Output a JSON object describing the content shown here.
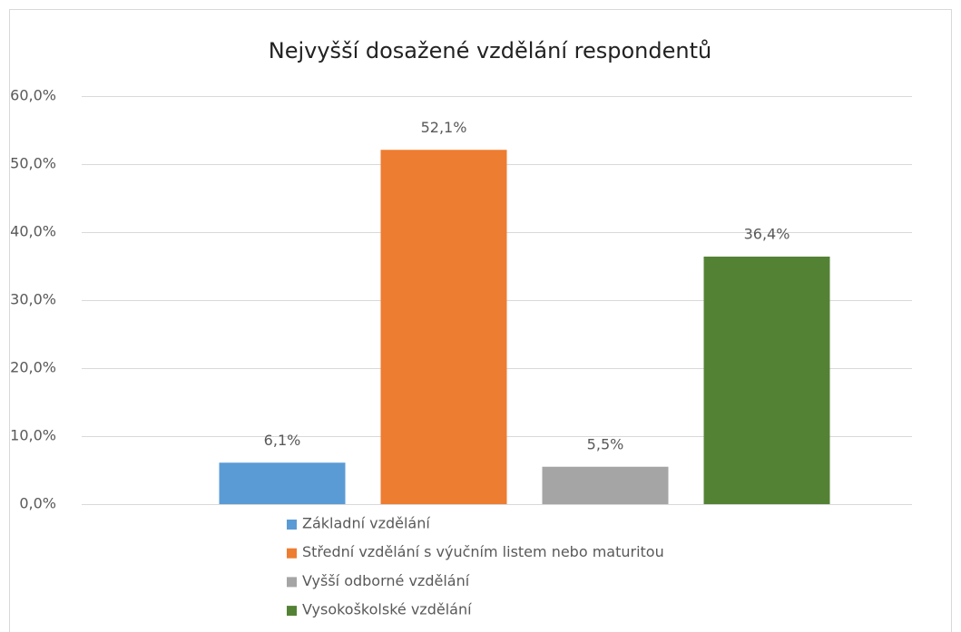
{
  "chart_data": {
    "type": "bar",
    "title": "Nejvyšší dosažené vzdělání respondentů",
    "categories": [
      null
    ],
    "series": [
      {
        "name": "Základní vzdělání",
        "color": "#5b9bd5",
        "values": [
          6.1
        ],
        "value_labels": [
          "6,1%"
        ]
      },
      {
        "name": "Střední vzdělání s výučním listem nebo maturitou",
        "color": "#ed7d31",
        "values": [
          52.1
        ],
        "value_labels": [
          "52,1%"
        ]
      },
      {
        "name": "Vyšší odborné vzdělání",
        "color": "#a5a5a5",
        "values": [
          5.5
        ],
        "value_labels": [
          "5,5%"
        ]
      },
      {
        "name": "Vysokoškolské vzdělání",
        "color": "#548235",
        "values": [
          36.4
        ],
        "value_labels": [
          "36,4%"
        ]
      }
    ],
    "ylim": [
      0,
      60
    ],
    "yticks": [
      {
        "value": 0,
        "label": "0,0%"
      },
      {
        "value": 10,
        "label": "10,0%"
      },
      {
        "value": 20,
        "label": "20,0%"
      },
      {
        "value": 30,
        "label": "30,0%"
      },
      {
        "value": 40,
        "label": "40,0%"
      },
      {
        "value": 50,
        "label": "50,0%"
      },
      {
        "value": 60,
        "label": "60,0%"
      }
    ],
    "grid": true,
    "legend": "bottom"
  }
}
